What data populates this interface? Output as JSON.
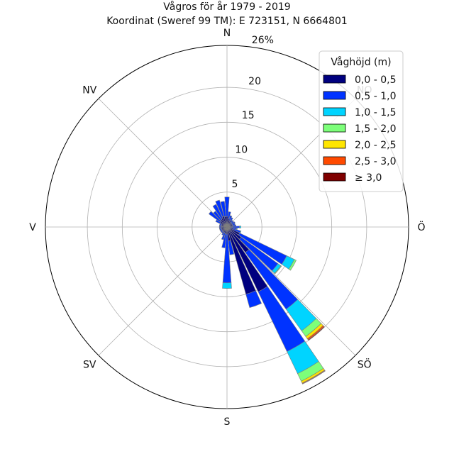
{
  "chart_data": {
    "type": "windrose",
    "title": "Vågros för år 1979 - 2019",
    "subtitle": "Koordinat (Sweref 99 TM): E 723151, N 6664801",
    "directions": [
      "N",
      "NO",
      "Ö",
      "SÖ",
      "S",
      "SV",
      "V",
      "NV"
    ],
    "sector_angles_deg": [
      0,
      10,
      20,
      30,
      40,
      50,
      60,
      70,
      80,
      90,
      100,
      110,
      120,
      130,
      140,
      150,
      160,
      170,
      180,
      190,
      200,
      210,
      220,
      230,
      240,
      250,
      260,
      270,
      280,
      290,
      300,
      310,
      320,
      330,
      340,
      350
    ],
    "radial_ticks": [
      "5",
      "10",
      "15",
      "20",
      "26%"
    ],
    "radial_tick_values": [
      5,
      10,
      15,
      20,
      26
    ],
    "rmax": 26,
    "legend_title": "Våghöjd (m)",
    "legend_placement": "top-right",
    "grid": true,
    "series": [
      {
        "name": "0,0 - 0,5",
        "color": "#00007f",
        "values": [
          1.5,
          1.2,
          1.0,
          1.0,
          0.8,
          0.8,
          0.8,
          0.8,
          0.8,
          0.8,
          0.6,
          1.0,
          2.0,
          2.5,
          4.5,
          10.3,
          10.0,
          2.0,
          1.0,
          1.0,
          0.9,
          0.9,
          0.8,
          0.8,
          0.8,
          0.8,
          0.8,
          0.8,
          0.8,
          0.8,
          1.0,
          1.2,
          1.3,
          1.4,
          1.6,
          1.5
        ]
      },
      {
        "name": "0,5 - 1,0",
        "color": "#0033ff",
        "values": [
          2.8,
          1.0,
          0.7,
          0.5,
          0.4,
          0.4,
          0.5,
          0.4,
          0.5,
          1.0,
          0.8,
          1.0,
          7.5,
          6.5,
          10.0,
          9.5,
          2.0,
          2.0,
          7.0,
          2.0,
          1.0,
          0.4,
          0.3,
          0.3,
          0.3,
          0.3,
          0.3,
          0.3,
          0.3,
          0.3,
          0.8,
          2.0,
          1.5,
          2.2,
          2.4,
          2.2
        ]
      },
      {
        "name": "1,0 - 1,5",
        "color": "#00d4ff",
        "values": [
          0,
          0,
          0,
          0,
          0,
          0,
          0,
          0,
          0,
          0.2,
          0.1,
          0.1,
          1.2,
          0.5,
          3.8,
          3.5,
          0,
          0,
          0.8,
          0,
          0,
          0,
          0,
          0,
          0,
          0,
          0,
          0,
          0,
          0,
          0,
          0,
          0,
          0,
          0,
          0
        ]
      },
      {
        "name": "1,5 - 2,0",
        "color": "#7dff7a",
        "values": [
          0,
          0,
          0,
          0,
          0,
          0,
          0,
          0,
          0,
          0,
          0,
          0,
          0.3,
          0.1,
          1.0,
          1.2,
          0,
          0,
          0,
          0,
          0,
          0,
          0,
          0,
          0,
          0,
          0,
          0,
          0,
          0,
          0,
          0,
          0,
          0,
          0,
          0
        ]
      },
      {
        "name": "2,0 - 2,5",
        "color": "#ffe600",
        "values": [
          0,
          0,
          0,
          0,
          0,
          0,
          0,
          0,
          0,
          0,
          0,
          0,
          0,
          0,
          0.4,
          0.3,
          0,
          0,
          0,
          0,
          0,
          0,
          0,
          0,
          0,
          0,
          0,
          0,
          0,
          0,
          0,
          0,
          0,
          0,
          0,
          0
        ]
      },
      {
        "name": "2,5 - 3,0",
        "color": "#ff4a00",
        "values": [
          0,
          0,
          0,
          0,
          0,
          0,
          0,
          0,
          0,
          0,
          0,
          0,
          0,
          0,
          0.2,
          0.1,
          0,
          0,
          0,
          0,
          0,
          0,
          0,
          0,
          0,
          0,
          0,
          0,
          0,
          0,
          0,
          0,
          0,
          0,
          0,
          0
        ]
      },
      {
        "name": "≥ 3,0",
        "color": "#7f0000",
        "values": [
          0,
          0,
          0,
          0,
          0,
          0,
          0,
          0,
          0,
          0,
          0,
          0,
          0,
          0,
          0.1,
          0.05,
          0,
          0,
          0,
          0,
          0,
          0,
          0,
          0,
          0,
          0,
          0,
          0,
          0,
          0,
          0,
          0,
          0,
          0,
          0,
          0
        ]
      }
    ]
  }
}
